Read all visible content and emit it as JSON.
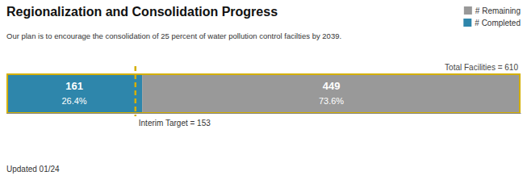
{
  "chart_data": {
    "type": "bar",
    "orientation": "horizontal",
    "stacked": true,
    "title": "Regionalization and Consolidation Progress",
    "subtitle": "Our plan is to encourage the consolidation of 25 percent of water pollution control facilties by 2039.",
    "footnote": "Updated 01/24",
    "categories": [
      null
    ],
    "series": [
      {
        "name": "# Completed",
        "color": "#2E86AB",
        "values": [
          161
        ],
        "share_labels": [
          "26.4%"
        ]
      },
      {
        "name": "# Remaining",
        "color": "#999999",
        "values": [
          449
        ],
        "share_labels": [
          "73.6%"
        ]
      }
    ],
    "xlim": [
      0,
      610
    ],
    "color": "#D4AF00",
    "annotations": [
      {
        "type": "line",
        "x": 153,
        "text": "Interim Target = 153",
        "color": "#D4AF00"
      },
      {
        "type": "text",
        "x": 610,
        "text": "Total Facilities = 610"
      }
    ],
    "data_labels": true,
    "tick_labels": false,
    "grid": false,
    "legend": "upper right"
  }
}
